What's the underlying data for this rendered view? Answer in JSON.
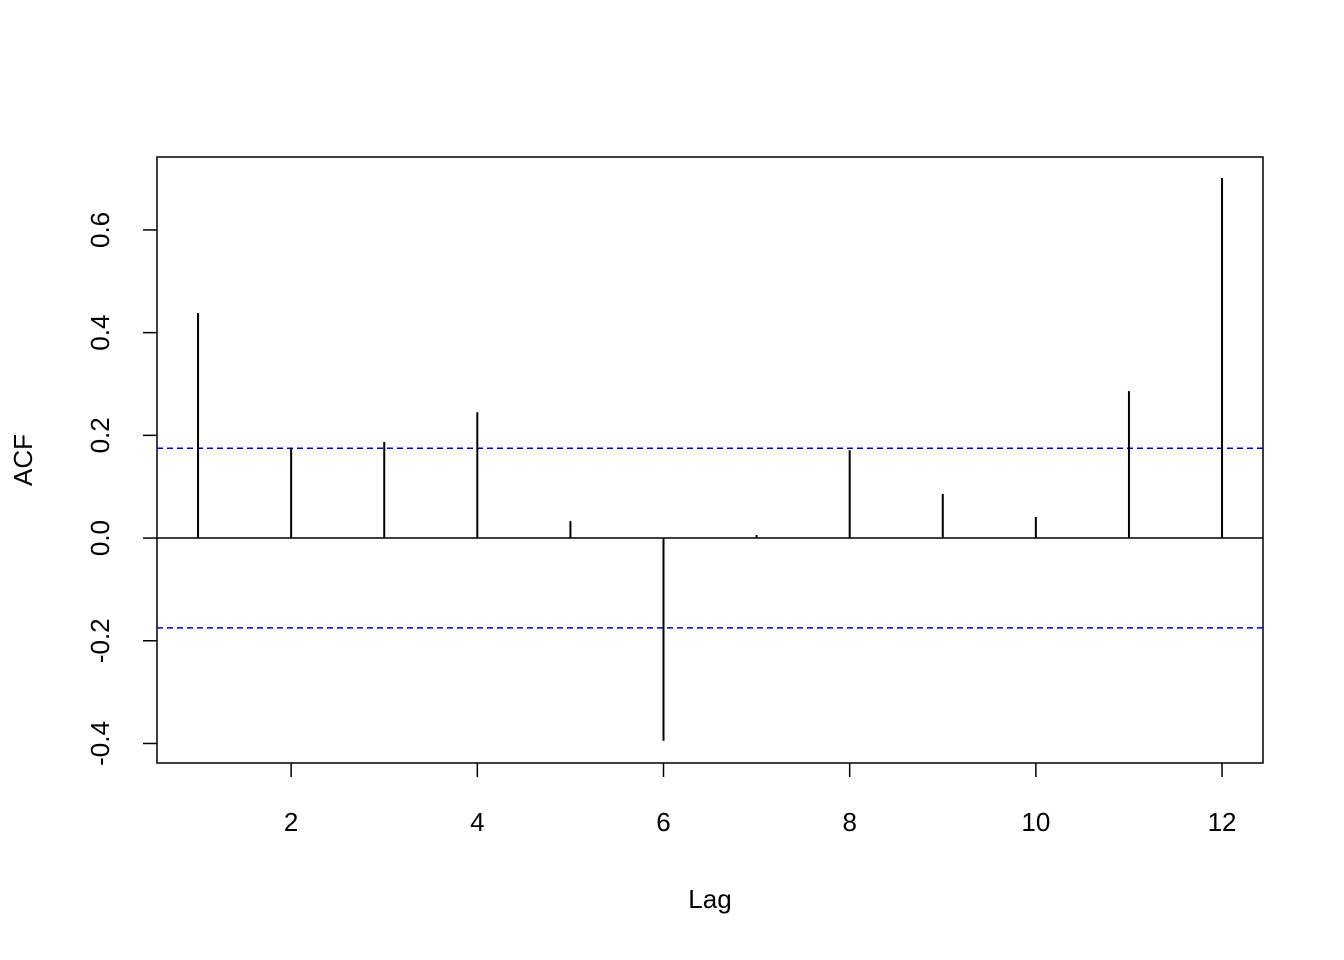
{
  "chart_data": {
    "type": "stem",
    "xlabel": "Lag",
    "ylabel": "ACF",
    "x": [
      1,
      2,
      3,
      4,
      5,
      6,
      7,
      8,
      9,
      10,
      11,
      12
    ],
    "values": [
      0.438,
      0.175,
      0.187,
      0.245,
      0.033,
      -0.395,
      0.006,
      0.171,
      0.086,
      0.041,
      0.286,
      0.701
    ],
    "color": "#000000",
    "ci_lines": [
      0.175,
      -0.175
    ],
    "ci_color": "#0000cc",
    "xlim": [
      0.559,
      12.44
    ],
    "xticks": [
      2,
      4,
      6,
      8,
      10,
      12
    ],
    "ylim": [
      -0.438,
      0.742
    ],
    "yticks": [
      -0.4,
      -0.2,
      {
        "value": 0,
        "label": "0.0"
      },
      0.2,
      0.4,
      0.6
    ]
  }
}
